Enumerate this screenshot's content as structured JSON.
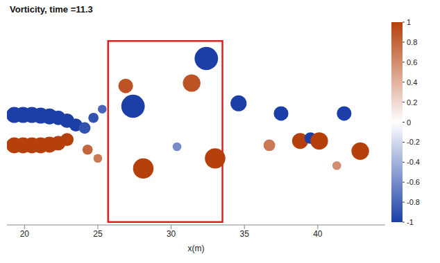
{
  "chart_data": {
    "type": "scatter",
    "title": "Vorticity, time =11.3",
    "x_label": "x(m)",
    "x": [
      19.3,
      19.9,
      20.5,
      21.1,
      21.7,
      22.3,
      22.9,
      23.5,
      19.3,
      19.9,
      20.5,
      21.1,
      21.7,
      22.3,
      22.9,
      24.1,
      24.7,
      25.3,
      24.3,
      25.0,
      26.9,
      27.4,
      28.1,
      30.4,
      31.4,
      32.4,
      33.0,
      34.6,
      36.7,
      37.5,
      38.8,
      39.5,
      40.1,
      41.3,
      41.8,
      42.9
    ],
    "y": [
      1.1,
      1.1,
      1.1,
      1.05,
      1.0,
      0.9,
      0.7,
      0.4,
      -1.0,
      -1.0,
      -1.0,
      -1.0,
      -0.95,
      -0.85,
      -0.6,
      0.2,
      0.9,
      1.5,
      -1.3,
      -1.9,
      3.1,
      1.7,
      -2.6,
      -1.1,
      3.3,
      5.0,
      -1.9,
      1.9,
      -1.0,
      1.2,
      -0.7,
      -0.5,
      -0.7,
      -2.4,
      1.2,
      -1.4
    ],
    "values": [
      -1,
      -1,
      -1,
      -1,
      -1,
      -1,
      -1,
      -1,
      1,
      1,
      1,
      1,
      1,
      1,
      1,
      -0.9,
      -0.9,
      -0.8,
      0.8,
      0.7,
      0.9,
      -1,
      1,
      -0.6,
      0.9,
      -1,
      1,
      -1,
      0.7,
      -1,
      1,
      -1,
      1,
      0.6,
      -1,
      1
    ],
    "size": [
      0.55,
      0.55,
      0.55,
      0.55,
      0.55,
      0.5,
      0.5,
      0.45,
      0.55,
      0.55,
      0.55,
      0.55,
      0.55,
      0.5,
      0.45,
      0.4,
      0.35,
      0.3,
      0.35,
      0.3,
      0.5,
      0.8,
      0.7,
      0.3,
      0.6,
      0.8,
      0.7,
      0.55,
      0.4,
      0.5,
      0.55,
      0.4,
      0.6,
      0.3,
      0.5,
      0.6
    ],
    "xlim": [
      18.8,
      44.6
    ],
    "xticks": [
      20,
      25,
      30,
      35,
      40
    ],
    "ylim": [
      -6.5,
      7.7
    ],
    "tick_labels": "x",
    "colorbar": {
      "range": [
        -1,
        1
      ],
      "ticks": [
        1,
        0.8,
        0.6,
        0.4,
        0.2,
        0,
        -0.2,
        -0.4,
        -0.6,
        -0.8,
        -1
      ],
      "colors": [
        "#1b3fa6",
        "#ffffff",
        "#b5400c"
      ]
    },
    "highlight": {
      "x": [
        25.7,
        33.5
      ],
      "y": [
        -6.3,
        6.2
      ],
      "color": "#e02020"
    }
  }
}
